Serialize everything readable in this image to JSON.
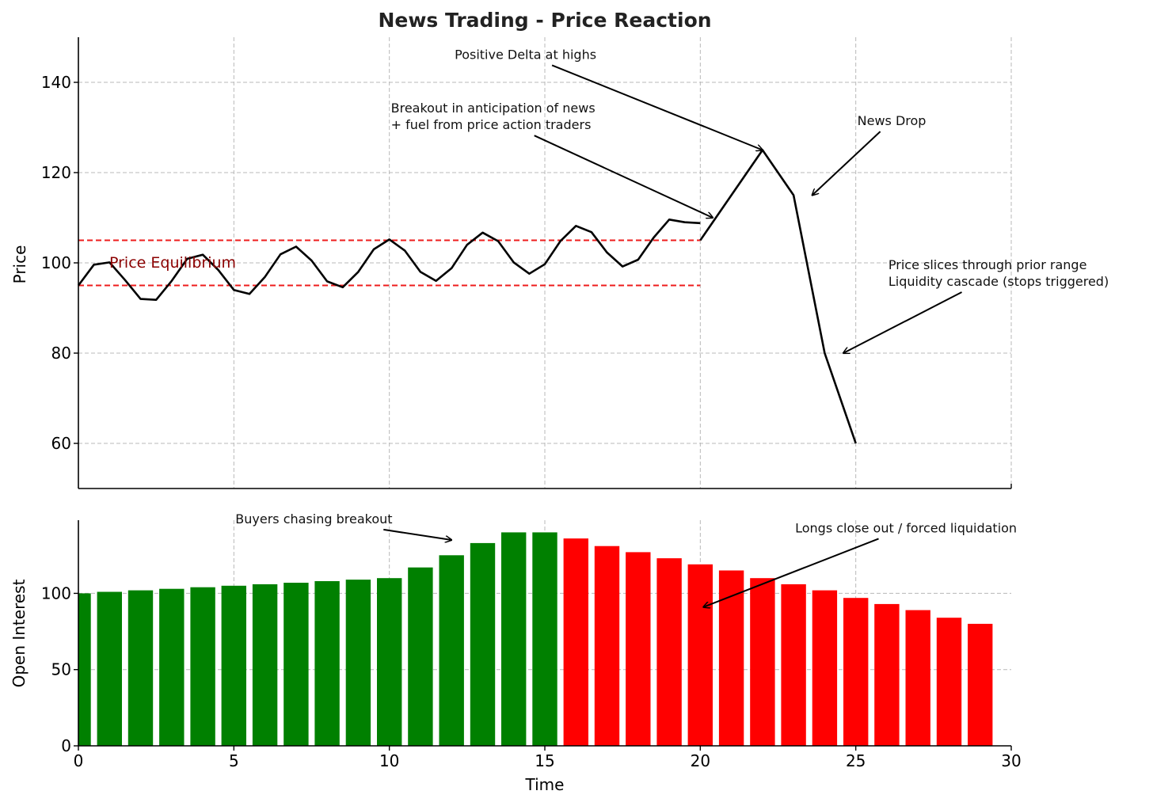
{
  "chart_data": [
    {
      "type": "line",
      "title": "News Trading - Price Reaction",
      "xlabel": "",
      "ylabel": "Price",
      "xlim": [
        0,
        30
      ],
      "ylim": [
        50,
        150
      ],
      "yticks": [
        60,
        80,
        100,
        120,
        140
      ],
      "grid": true,
      "series": [
        {
          "color": "#000000",
          "x": [
            0,
            0.5,
            1,
            1.5,
            2,
            2.5,
            3,
            3.5,
            4,
            4.5,
            5,
            5.5,
            6,
            6.5,
            7,
            7.5,
            8,
            8.5,
            9,
            9.5,
            10,
            10.5,
            11,
            11.5,
            12,
            12.5,
            13,
            13.5,
            14,
            14.5,
            15,
            15.5,
            16,
            16.5,
            17,
            17.5,
            18,
            18.5,
            19,
            19.5,
            20
          ],
          "y": [
            95,
            99.6,
            100.1,
            96.2,
            92.0,
            91.8,
            96.0,
            100.9,
            101.8,
            98.4,
            94.0,
            93.1,
            96.9,
            101.9,
            103.6,
            100.5,
            95.9,
            94.6,
            98.0,
            103.0,
            105.2,
            102.7,
            98.0,
            96.0,
            98.8,
            104.0,
            106.7,
            104.8,
            100.1,
            97.6,
            99.7,
            104.8,
            108.2,
            106.8,
            102.3,
            99.2,
            100.7,
            105.6,
            109.6,
            109.0,
            108.8
          ]
        },
        {
          "color": "#000000",
          "x": [
            20,
            21,
            22,
            23,
            24,
            25
          ],
          "y": [
            105,
            115,
            125,
            115,
            80,
            60
          ]
        }
      ],
      "hlines": [
        {
          "y": 105,
          "x_range": [
            0,
            20
          ],
          "color": "#ee1c1c",
          "style": "dashed"
        },
        {
          "y": 95,
          "x_range": [
            0,
            20
          ],
          "color": "#ee1c1c",
          "style": "dashed"
        }
      ],
      "equilibrium_label": "Price Equilibrium",
      "annotations": [
        {
          "lines": [
            "Positive Delta at highs"
          ],
          "text_at": [
            12.1,
            145.2
          ],
          "arrow_to": [
            22,
            125
          ]
        },
        {
          "lines": [
            "Breakout in anticipation of news",
            "+ fuel from price action traders"
          ],
          "text_at": [
            10.05,
            133.3
          ],
          "arrow_to": [
            20.4,
            110
          ]
        },
        {
          "lines": [
            "News Drop"
          ],
          "text_at": [
            25.05,
            130.5
          ],
          "arrow_to": [
            23.6,
            115
          ]
        },
        {
          "lines": [
            "Price slices through prior range",
            "Liquidity cascade (stops triggered)"
          ],
          "text_at": [
            26.05,
            98.6
          ],
          "arrow_to": [
            24.6,
            80
          ]
        }
      ]
    },
    {
      "type": "bar",
      "xlabel": "Time",
      "ylabel": "Open Interest",
      "xlim": [
        0,
        30
      ],
      "ylim": [
        0,
        148
      ],
      "xticks": [
        0,
        5,
        10,
        15,
        20,
        25,
        30
      ],
      "yticks": [
        0,
        50,
        100
      ],
      "grid": true,
      "x": [
        0,
        1,
        2,
        3,
        4,
        5,
        6,
        7,
        8,
        9,
        10,
        11,
        12,
        13,
        14,
        15,
        16,
        17,
        18,
        19,
        20,
        21,
        22,
        23,
        24,
        25,
        26,
        27,
        28,
        29
      ],
      "values": [
        100,
        101,
        102,
        103,
        104,
        105,
        106,
        107,
        108,
        109,
        110,
        117,
        125,
        133,
        140,
        140,
        136,
        131,
        127,
        123,
        119,
        115,
        110,
        106,
        102,
        97,
        93,
        89,
        84,
        80
      ],
      "colors": [
        "#008000",
        "#008000",
        "#008000",
        "#008000",
        "#008000",
        "#008000",
        "#008000",
        "#008000",
        "#008000",
        "#008000",
        "#008000",
        "#008000",
        "#008000",
        "#008000",
        "#008000",
        "#008000",
        "#ff0000",
        "#ff0000",
        "#ff0000",
        "#ff0000",
        "#ff0000",
        "#ff0000",
        "#ff0000",
        "#ff0000",
        "#ff0000",
        "#ff0000",
        "#ff0000",
        "#ff0000",
        "#ff0000",
        "#ff0000"
      ],
      "annotations": [
        {
          "lines": [
            "Buyers chasing breakout"
          ],
          "text_at": [
            5.05,
            146
          ],
          "arrow_to": [
            12,
            135
          ]
        },
        {
          "lines": [
            "Longs close out / forced liquidation"
          ],
          "text_at": [
            23.05,
            140
          ],
          "arrow_to": [
            20.1,
            91
          ]
        }
      ]
    }
  ]
}
